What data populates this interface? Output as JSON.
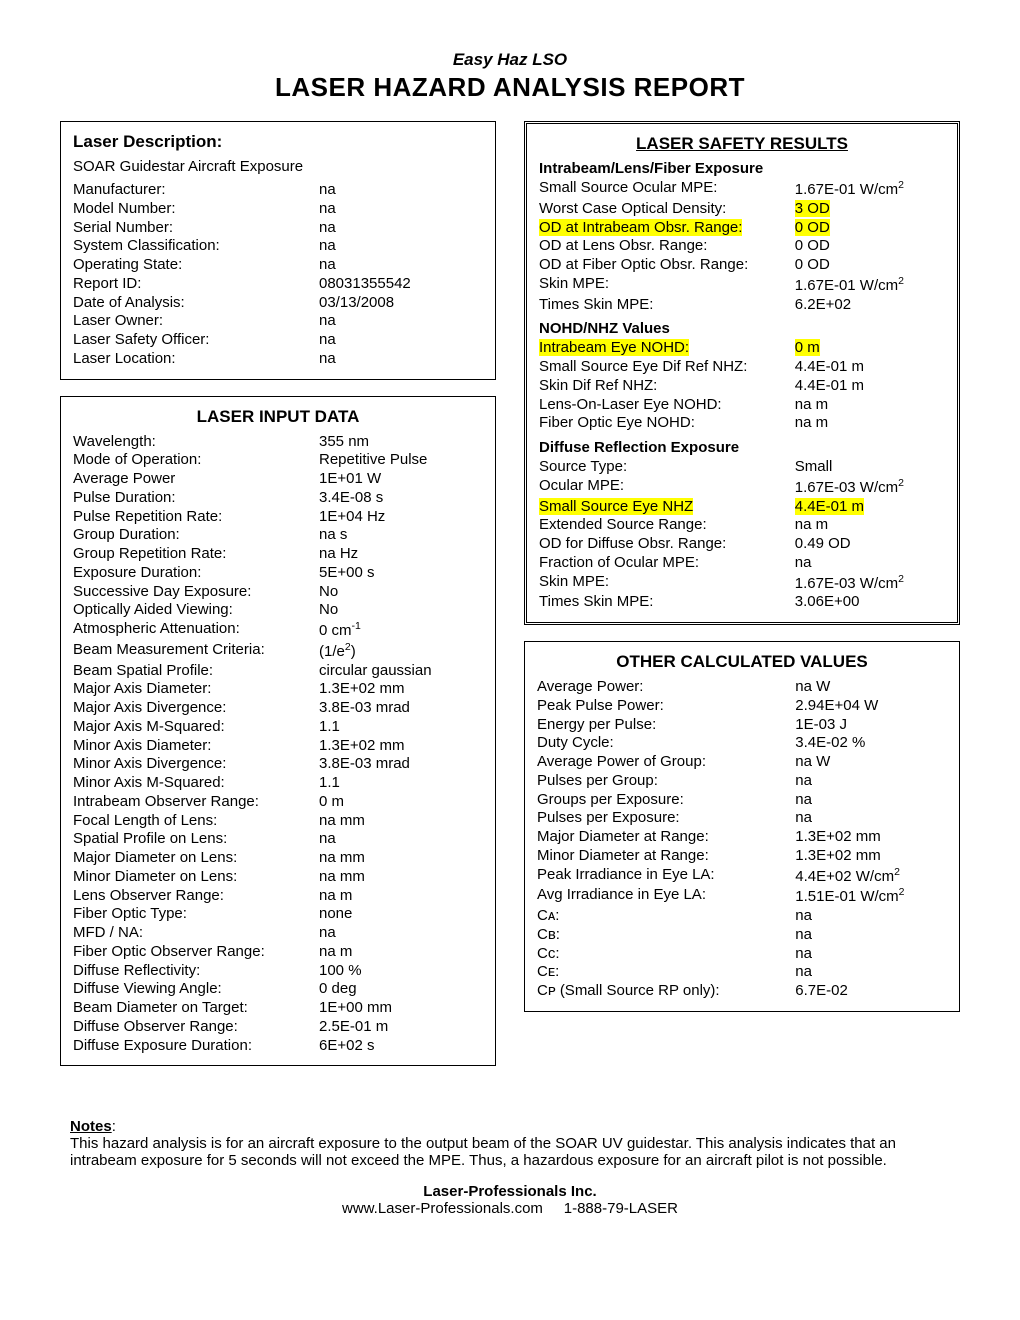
{
  "header": {
    "subtitle": "Easy Haz LSO",
    "title": "LASER HAZARD ANALYSIS REPORT"
  },
  "desc": {
    "heading": "Laser Description:",
    "summary": "SOAR Guidestar Aircraft Exposure",
    "rows": [
      {
        "l": "Manufacturer:",
        "v": "na"
      },
      {
        "l": "Model Number:",
        "v": "na"
      },
      {
        "l": "Serial Number:",
        "v": "na"
      },
      {
        "l": "System Classification:",
        "v": "na"
      },
      {
        "l": "Operating State:",
        "v": "na"
      },
      {
        "l": "Report ID:",
        "v": "08031355542"
      },
      {
        "l": "Date of Analysis:",
        "v": "03/13/2008"
      },
      {
        "l": "Laser Owner:",
        "v": "na"
      },
      {
        "l": "Laser Safety Officer:",
        "v": "na"
      },
      {
        "l": "Laser Location:",
        "v": "na"
      }
    ]
  },
  "input": {
    "heading": "LASER INPUT DATA",
    "rows": [
      {
        "l": "Wavelength:",
        "v": "355 nm"
      },
      {
        "l": "Mode of Operation:",
        "v": "Repetitive Pulse"
      },
      {
        "l": "Average Power",
        "v": "1E+01 W"
      },
      {
        "l": "Pulse Duration:",
        "v": "3.4E-08 s"
      },
      {
        "l": "Pulse Repetition Rate:",
        "v": "1E+04 Hz"
      },
      {
        "l": "Group Duration:",
        "v": "na s"
      },
      {
        "l": "Group Repetition Rate:",
        "v": "na Hz"
      },
      {
        "l": "Exposure Duration:",
        "v": "5E+00 s"
      },
      {
        "l": "Successive Day Exposure:",
        "v": "No"
      },
      {
        "l": "Optically Aided Viewing:",
        "v": "No"
      },
      {
        "l": "Atmospheric Attenuation:",
        "v": "0 cm⁻¹",
        "sup": ""
      },
      {
        "l": "Beam Measurement Criteria:",
        "v": "(1/e²)"
      },
      {
        "l": "Beam Spatial Profile:",
        "v": "circular gaussian"
      },
      {
        "l": "Major Axis Diameter:",
        "v": "1.3E+02 mm"
      },
      {
        "l": "Major Axis Divergence:",
        "v": "3.8E-03 mrad"
      },
      {
        "l": "Major Axis M-Squared:",
        "v": "1.1"
      },
      {
        "l": "Minor Axis Diameter:",
        "v": "1.3E+02 mm"
      },
      {
        "l": "Minor Axis Divergence:",
        "v": "3.8E-03 mrad"
      },
      {
        "l": "Minor Axis M-Squared:",
        "v": "1.1"
      },
      {
        "l": "Intrabeam Observer Range:",
        "v": "0 m"
      },
      {
        "l": "Focal Length of Lens:",
        "v": "na mm"
      },
      {
        "l": "Spatial Profile on Lens:",
        "v": "na"
      },
      {
        "l": "Major Diameter on Lens:",
        "v": "na mm"
      },
      {
        "l": "Minor Diameter on Lens:",
        "v": "na mm"
      },
      {
        "l": "Lens Observer Range:",
        "v": "na m"
      },
      {
        "l": "Fiber Optic Type:",
        "v": "none"
      },
      {
        "l": "MFD / NA:",
        "v": "na"
      },
      {
        "l": "Fiber Optic Observer Range:",
        "v": "na m"
      },
      {
        "l": "Diffuse Reflectivity:",
        "v": "100 %"
      },
      {
        "l": "Diffuse Viewing Angle:",
        "v": "0 deg"
      },
      {
        "l": "Beam Diameter on Target:",
        "v": "1E+00 mm"
      },
      {
        "l": "Diffuse Observer Range:",
        "v": "2.5E-01 m"
      },
      {
        "l": "Diffuse Exposure Duration:",
        "v": "6E+02 s"
      }
    ]
  },
  "safety": {
    "heading": "LASER SAFETY RESULTS",
    "s1": {
      "sub": "Intrabeam/Lens/Fiber Exposure",
      "rows": [
        {
          "l": "Small Source Ocular MPE:",
          "v": "1.67E-01 W/cm²"
        },
        {
          "l": "Worst Case Optical Density:",
          "v": "3 OD",
          "hlv": true
        },
        {
          "l": "OD at Intrabeam Obsr. Range:",
          "v": "0 OD",
          "hll": true,
          "hlv": true
        },
        {
          "l": "OD at Lens Obsr. Range:",
          "v": "0 OD"
        },
        {
          "l": "OD at Fiber Optic Obsr. Range:",
          "v": "0 OD"
        },
        {
          "l": "Skin MPE:",
          "v": "1.67E-01 W/cm²"
        },
        {
          "l": "Times Skin MPE:",
          "v": "6.2E+02"
        }
      ]
    },
    "s2": {
      "sub": "NOHD/NHZ Values",
      "rows": [
        {
          "l": "Intrabeam Eye NOHD:",
          "v": "0 m",
          "hll": true,
          "hlv": true
        },
        {
          "l": "Small Source Eye Dif Ref NHZ:",
          "v": "4.4E-01 m"
        },
        {
          "l": "Skin Dif Ref NHZ:",
          "v": "4.4E-01 m"
        },
        {
          "l": "Lens-On-Laser Eye NOHD:",
          "v": "na m"
        },
        {
          "l": "Fiber Optic Eye NOHD:",
          "v": "na m"
        }
      ]
    },
    "s3": {
      "sub": "Diffuse Reflection Exposure",
      "rows": [
        {
          "l": "Source Type:",
          "v": "Small"
        },
        {
          "l": "Ocular MPE:",
          "v": "1.67E-03 W/cm²"
        },
        {
          "l": "Small Source Eye NHZ",
          "v": "4.4E-01 m",
          "hll": true,
          "hlv": true
        },
        {
          "l": "Extended Source Range:",
          "v": "na m"
        },
        {
          "l": "OD for Diffuse Obsr. Range:",
          "v": "0.49 OD"
        },
        {
          "l": "Fraction of Ocular MPE:",
          "v": "na"
        },
        {
          "l": "Skin MPE:",
          "v": "1.67E-03 W/cm²"
        },
        {
          "l": "Times Skin MPE:",
          "v": "3.06E+00"
        }
      ]
    }
  },
  "other": {
    "heading": "OTHER CALCULATED VALUES",
    "rows": [
      {
        "l": "Average Power:",
        "v": "na W"
      },
      {
        "l": "Peak Pulse Power:",
        "v": "2.94E+04 W"
      },
      {
        "l": "Energy per Pulse:",
        "v": "1E-03 J"
      },
      {
        "l": "Duty Cycle:",
        "v": "3.4E-02 %"
      },
      {
        "l": "Average Power of Group:",
        "v": "na W"
      },
      {
        "l": "Pulses per Group:",
        "v": "na"
      },
      {
        "l": "Groups per Exposure:",
        "v": "na"
      },
      {
        "l": "Pulses per Exposure:",
        "v": "na"
      },
      {
        "l": "Major Diameter at Range:",
        "v": "1.3E+02 mm"
      },
      {
        "l": "Minor Diameter at Range:",
        "v": "1.3E+02 mm"
      },
      {
        "l": "Peak Irradiance in Eye LA:",
        "v": "4.4E+02 W/cm²"
      },
      {
        "l": "Avg Irradiance in Eye LA:",
        "v": "1.51E-01 W/cm²"
      },
      {
        "l": "Cᴀ:",
        "v": "na"
      },
      {
        "l": "Cʙ:",
        "v": "na"
      },
      {
        "l": "Cᴄ:",
        "v": "na"
      },
      {
        "l": "Cᴇ:",
        "v": "na"
      },
      {
        "l": "Cᴘ (Small Source RP only):",
        "v": "6.7E-02"
      }
    ]
  },
  "notes": {
    "heading": "Notes",
    "body": "This hazard analysis is for an aircraft exposure to the output beam of the SOAR UV guidestar. This analysis indicates that an intrabeam exposure for 5 seconds will not exceed the MPE. Thus, a hazardous exposure for an aircraft pilot is not possible."
  },
  "footer": {
    "company": "Laser-Professionals Inc.",
    "site": "www.Laser-Professionals.com",
    "phone": "1-888-79-LASER"
  }
}
